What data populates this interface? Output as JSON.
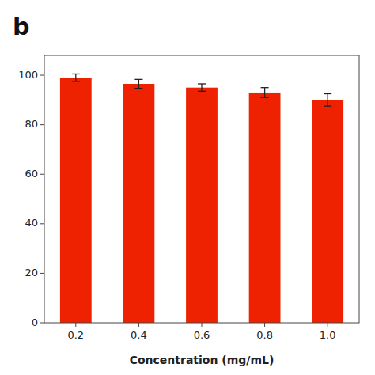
{
  "chart_data": {
    "type": "bar",
    "title": "b",
    "categories": [
      "0.2",
      "0.4",
      "0.6",
      "0.8",
      "1.0"
    ],
    "values": [
      99.0,
      96.5,
      95.0,
      93.0,
      90.0
    ],
    "errors": [
      1.5,
      1.8,
      1.5,
      2.0,
      2.5
    ],
    "color": "#EE2200",
    "xlabel": "Concentration (mg/mL)",
    "ylim": [
      0,
      108
    ],
    "yticks": [
      0,
      20,
      40,
      60,
      80,
      100
    ],
    "grid": false
  }
}
